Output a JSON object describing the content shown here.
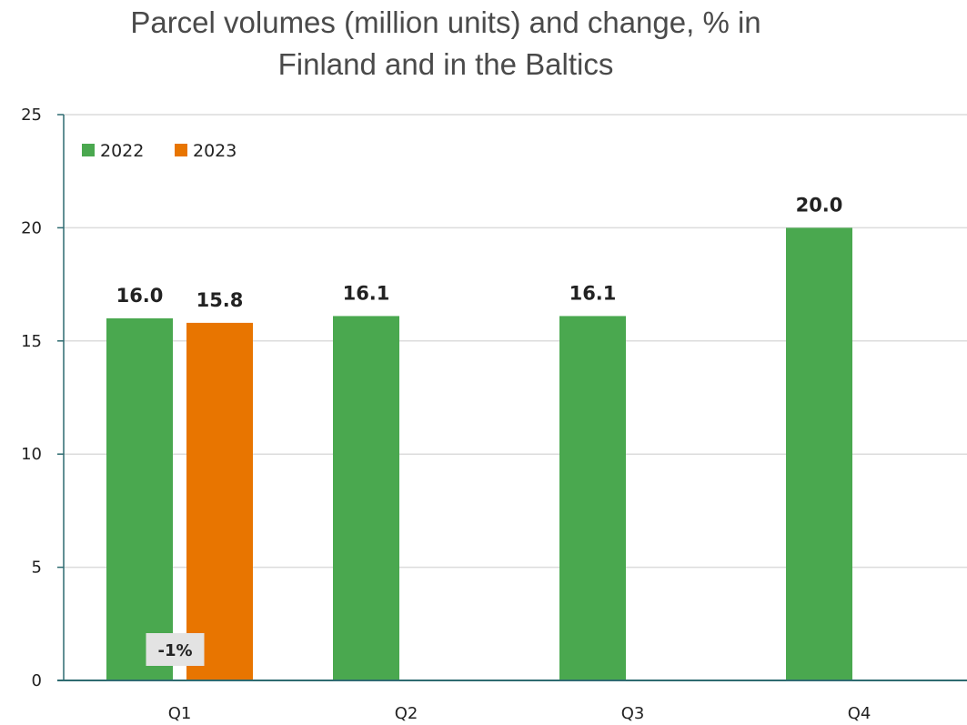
{
  "chart_data": {
    "type": "bar",
    "title_lines": [
      "Parcel volumes (million units) and change, % in",
      "Finland and in the Baltics"
    ],
    "categories": [
      "Q1",
      "Q2",
      "Q3",
      "Q4"
    ],
    "series": [
      {
        "name": "2022",
        "color": "#4aa84f",
        "values": [
          16.0,
          16.1,
          16.1,
          20.0
        ],
        "labels": [
          "16.0",
          "16.1",
          "16.1",
          "20.0"
        ]
      },
      {
        "name": "2023",
        "color": "#e87500",
        "values": [
          15.8,
          null,
          null,
          null
        ],
        "labels": [
          "15.8",
          "",
          "",
          ""
        ]
      }
    ],
    "ylim": [
      0,
      25
    ],
    "yticks": [
      0,
      5,
      10,
      15,
      20,
      25
    ],
    "grid": true,
    "legend": "top-left",
    "annotations": [
      {
        "category": "Q1",
        "text": "-1%"
      }
    ],
    "colors": {
      "axis": "#2e6b70",
      "grid": "#dcdcdc",
      "annotation_box": "#e3e3e3"
    }
  }
}
